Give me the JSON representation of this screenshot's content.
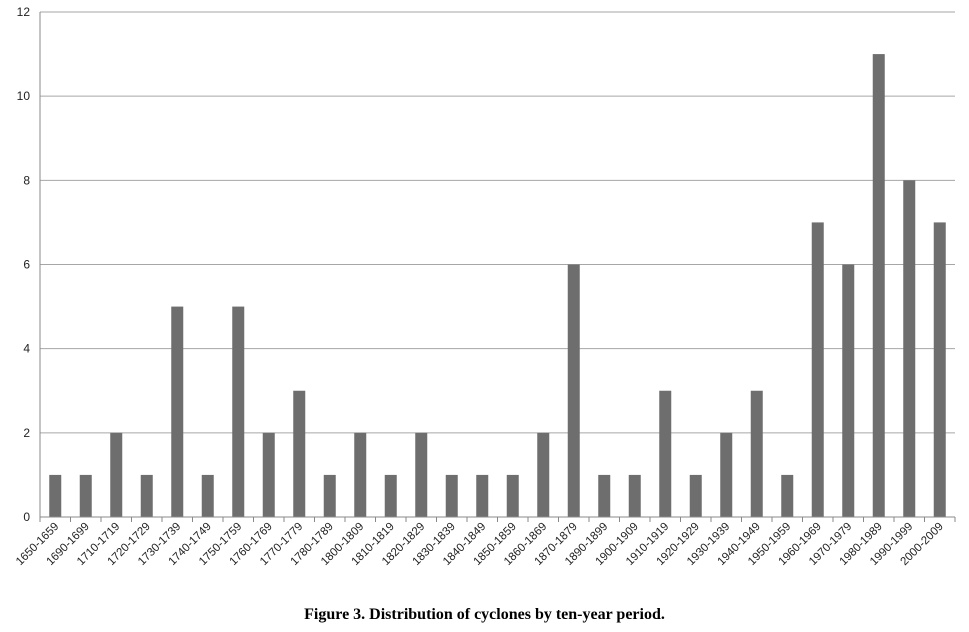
{
  "caption": "Figure 3. Distribution of cyclones by ten-year period.",
  "chart_data": {
    "type": "bar",
    "title": "",
    "xlabel": "",
    "ylabel": "",
    "ylim": [
      0,
      12
    ],
    "yticks": [
      "0",
      "2",
      "4",
      "6",
      "8",
      "10",
      "12"
    ],
    "grid": true,
    "legend": "none",
    "bar_color": "#6e6e6e",
    "grid_color": "#a6a6a6",
    "categories": [
      "1650-1659",
      "1690-1699",
      "1710-1719",
      "1720-1729",
      "1730-1739",
      "1740-1749",
      "1750-1759",
      "1760-1769",
      "1770-1779",
      "1780-1789",
      "1800-1809",
      "1810-1819",
      "1820-1829",
      "1830-1839",
      "1840-1849",
      "1850-1859",
      "1860-1869",
      "1870-1879",
      "1890-1899",
      "1900-1909",
      "1910-1919",
      "1920-1929",
      "1930-1939",
      "1940-1949",
      "1950-1959",
      "1960-1969",
      "1970-1979",
      "1980-1989",
      "1990-1999",
      "2000-2009"
    ],
    "values": [
      1,
      1,
      2,
      1,
      5,
      1,
      5,
      2,
      3,
      1,
      2,
      1,
      2,
      1,
      1,
      1,
      2,
      6,
      1,
      1,
      3,
      1,
      2,
      3,
      1,
      7,
      6,
      11,
      8,
      7
    ]
  }
}
